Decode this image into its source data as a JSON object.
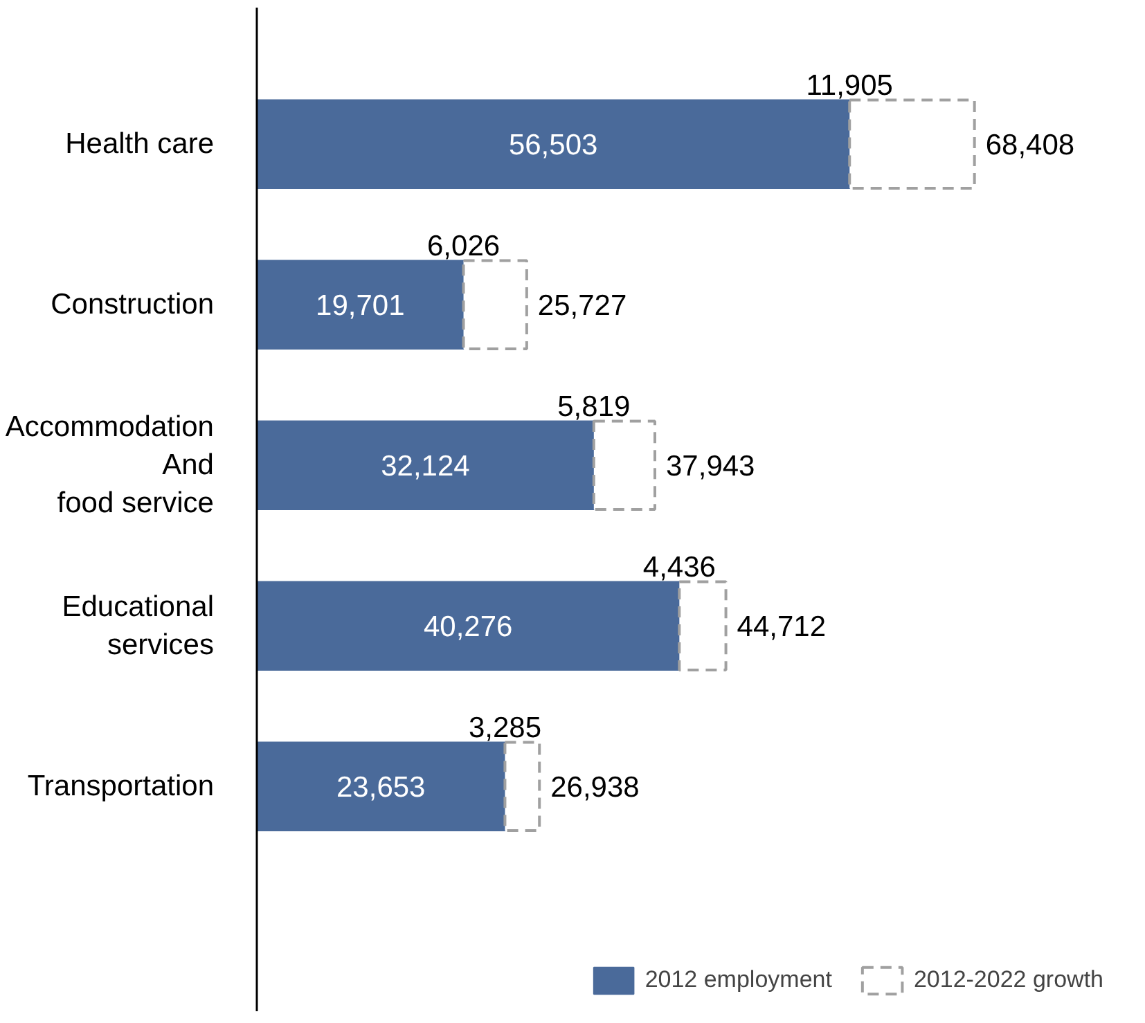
{
  "chart_data": {
    "type": "bar",
    "orientation": "horizontal",
    "stacked": true,
    "categories": [
      "Health care",
      "Construction",
      "Accommodation\nAnd\nfood service",
      "Educational\nservices",
      "Transportation"
    ],
    "series": [
      {
        "name": "2012 employment",
        "color": "#4a6a9a",
        "values": [
          56503,
          19701,
          32124,
          40276,
          23653
        ],
        "value_labels": [
          "56,503",
          "19,701",
          "32,124",
          "40,276",
          "23,653"
        ]
      },
      {
        "name": "2012-2022 growth",
        "color": "#a0a0a0",
        "line_style": "dashed",
        "values": [
          11905,
          6026,
          5819,
          4436,
          3285
        ],
        "value_labels": [
          "11,905",
          "6,026",
          "5,819",
          "4,436",
          "3,285"
        ]
      }
    ],
    "totals": [
      "68,408",
      "25,727",
      "37,943",
      "44,712",
      "26,938"
    ],
    "legend": "bottom right",
    "tick_labels": "y",
    "grid": false
  }
}
